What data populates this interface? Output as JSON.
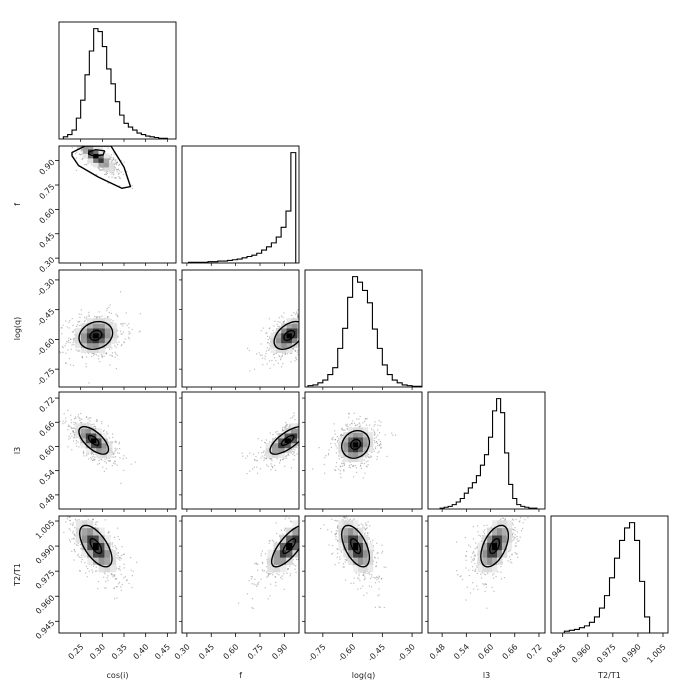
{
  "chart_data": {
    "type": "corner",
    "parameters": [
      "cos(i)",
      "f",
      "log(q)",
      "l3",
      "T2/T1"
    ],
    "axis_labels": [
      "cos(i)",
      "f",
      "log(q)",
      "l3",
      "T2/T1"
    ],
    "ranges": [
      [
        0.2,
        0.47
      ],
      [
        0.27,
        0.99
      ],
      [
        -0.84,
        -0.25
      ],
      [
        0.445,
        0.735
      ],
      [
        0.938,
        1.008
      ]
    ],
    "ticks": [
      {
        "values": [
          0.25,
          0.3,
          0.35,
          0.4,
          0.45
        ],
        "labels": [
          "0.25",
          "0.30",
          "0.35",
          "0.40",
          "0.45"
        ]
      },
      {
        "values": [
          0.3,
          0.45,
          0.6,
          0.75,
          0.9
        ],
        "labels": [
          "0.30",
          "0.45",
          "0.60",
          "0.75",
          "0.90"
        ]
      },
      {
        "values": [
          -0.75,
          -0.6,
          -0.45,
          -0.3
        ],
        "labels": [
          "-0.75",
          "-0.60",
          "-0.45",
          "-0.30"
        ]
      },
      {
        "values": [
          0.48,
          0.54,
          0.6,
          0.66,
          0.72
        ],
        "labels": [
          "0.48",
          "0.54",
          "0.60",
          "0.66",
          "0.72"
        ]
      },
      {
        "values": [
          0.945,
          0.96,
          0.975,
          0.99,
          1.005
        ],
        "labels": [
          "0.945",
          "0.960",
          "0.975",
          "0.990",
          "1.005"
        ]
      }
    ],
    "histograms": [
      {
        "parameter": "cos(i)",
        "edges": [
          0.21,
          0.22,
          0.23,
          0.24,
          0.25,
          0.26,
          0.27,
          0.28,
          0.29,
          0.3,
          0.31,
          0.32,
          0.33,
          0.34,
          0.35,
          0.36,
          0.37,
          0.38,
          0.39,
          0.4,
          0.41,
          0.42,
          0.43,
          0.44,
          0.45
        ],
        "counts": [
          3,
          6,
          12,
          28,
          52,
          86,
          118,
          148,
          144,
          124,
          94,
          74,
          50,
          32,
          21,
          16,
          12,
          8,
          6,
          4,
          3,
          2,
          1,
          1
        ]
      },
      {
        "parameter": "f",
        "edges": [
          0.31,
          0.34,
          0.37,
          0.4,
          0.43,
          0.46,
          0.49,
          0.52,
          0.55,
          0.58,
          0.61,
          0.64,
          0.67,
          0.7,
          0.73,
          0.76,
          0.79,
          0.82,
          0.85,
          0.88,
          0.91,
          0.94,
          0.97
        ],
        "counts": [
          1,
          1,
          1,
          1,
          2,
          2,
          3,
          3,
          4,
          5,
          6,
          8,
          10,
          12,
          15,
          20,
          25,
          31,
          40,
          55,
          80,
          170
        ]
      },
      {
        "parameter": "log(q)",
        "edges": [
          -0.825,
          -0.8,
          -0.775,
          -0.75,
          -0.725,
          -0.7,
          -0.675,
          -0.65,
          -0.625,
          -0.6,
          -0.575,
          -0.55,
          -0.525,
          -0.5,
          -0.475,
          -0.45,
          -0.425,
          -0.4,
          -0.375,
          -0.35,
          -0.325,
          -0.3,
          -0.275,
          -0.25
        ],
        "counts": [
          2,
          3,
          6,
          10,
          18,
          28,
          56,
          85,
          130,
          160,
          152,
          140,
          122,
          84,
          56,
          32,
          18,
          10,
          6,
          3,
          2,
          1,
          1
        ]
      },
      {
        "parameter": "l3",
        "edges": [
          0.475,
          0.485,
          0.495,
          0.505,
          0.515,
          0.525,
          0.535,
          0.545,
          0.555,
          0.565,
          0.575,
          0.585,
          0.595,
          0.605,
          0.615,
          0.625,
          0.635,
          0.645,
          0.655,
          0.665,
          0.675,
          0.685,
          0.695,
          0.705,
          0.715
        ],
        "counts": [
          1,
          2,
          3,
          5,
          8,
          12,
          18,
          24,
          30,
          38,
          50,
          62,
          82,
          112,
          126,
          110,
          64,
          28,
          12,
          5,
          3,
          2,
          1,
          1
        ]
      },
      {
        "parameter": "T2/T1",
        "edges": [
          0.946,
          0.949,
          0.952,
          0.955,
          0.958,
          0.961,
          0.964,
          0.967,
          0.97,
          0.973,
          0.976,
          0.979,
          0.982,
          0.985,
          0.988,
          0.991,
          0.994,
          0.997
        ],
        "counts": [
          2,
          3,
          4,
          6,
          8,
          12,
          18,
          28,
          42,
          62,
          84,
          104,
          118,
          124,
          104,
          58,
          18
        ]
      }
    ],
    "pairs": [
      {
        "x": "cos(i)",
        "y": "f",
        "mean": [
          0.285,
          0.93
        ],
        "sd": [
          0.022,
          0.05
        ],
        "rho": -0.8,
        "inner_contour": [
          [
            0.27,
            0.955
          ],
          [
            0.285,
            0.968
          ],
          [
            0.305,
            0.96
          ],
          [
            0.302,
            0.935
          ],
          [
            0.283,
            0.927
          ],
          [
            0.268,
            0.94
          ]
        ],
        "outer_contour": [
          [
            0.23,
            0.95
          ],
          [
            0.26,
            0.99
          ],
          [
            0.32,
            0.99
          ],
          [
            0.35,
            0.86
          ],
          [
            0.365,
            0.74
          ],
          [
            0.345,
            0.73
          ],
          [
            0.29,
            0.8
          ],
          [
            0.245,
            0.87
          ],
          [
            0.23,
            0.93
          ]
        ]
      },
      {
        "x": "cos(i)",
        "y": "log(q)",
        "mean": [
          0.285,
          -0.58
        ],
        "sd": [
          0.025,
          0.045
        ],
        "rho": 0.18
      },
      {
        "x": "cos(i)",
        "y": "l3",
        "mean": [
          0.28,
          0.615
        ],
        "sd": [
          0.022,
          0.022
        ],
        "rho": -0.65
      },
      {
        "x": "cos(i)",
        "y": "T2/T1",
        "mean": [
          0.285,
          0.99
        ],
        "sd": [
          0.024,
          0.008
        ],
        "rho": -0.62
      },
      {
        "x": "f",
        "y": "log(q)",
        "mean": [
          0.93,
          -0.58
        ],
        "sd": [
          0.06,
          0.045
        ],
        "rho": 0.45
      },
      {
        "x": "f",
        "y": "l3",
        "mean": [
          0.92,
          0.615
        ],
        "sd": [
          0.07,
          0.022
        ],
        "rho": 0.72
      },
      {
        "x": "f",
        "y": "T2/T1",
        "mean": [
          0.93,
          0.99
        ],
        "sd": [
          0.07,
          0.008
        ],
        "rho": 0.75
      },
      {
        "x": "log(q)",
        "y": "l3",
        "mean": [
          -0.585,
          0.605
        ],
        "sd": [
          0.045,
          0.022
        ],
        "rho": 0.15
      },
      {
        "x": "log(q)",
        "y": "T2/T1",
        "mean": [
          -0.585,
          0.99
        ],
        "sd": [
          0.045,
          0.008
        ],
        "rho": -0.55
      },
      {
        "x": "l3",
        "y": "T2/T1",
        "mean": [
          0.61,
          0.99
        ],
        "sd": [
          0.022,
          0.008
        ],
        "rho": 0.5
      }
    ],
    "grid": false,
    "legend": "none"
  }
}
